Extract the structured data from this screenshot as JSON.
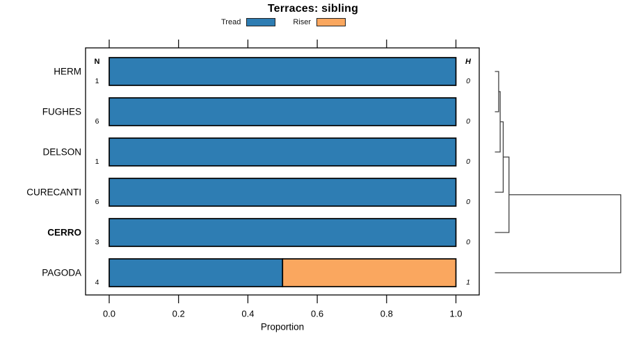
{
  "title": "Terraces: sibling",
  "legend": {
    "items": [
      {
        "label": "Tread",
        "color": "#2e7db3"
      },
      {
        "label": "Riser",
        "color": "#faa75f"
      }
    ]
  },
  "columns": {
    "n_header": "N",
    "h_header": "H"
  },
  "colors": {
    "bar_border": "#000000",
    "dendrogram_line": "#404040",
    "axis": "#000000"
  },
  "chart_data": {
    "type": "bar",
    "orientation": "horizontal",
    "stacked": true,
    "title": "Terraces: sibling",
    "xlabel": "Proportion",
    "xlim": [
      0,
      1
    ],
    "x_ticks": [
      "0.0",
      "0.2",
      "0.4",
      "0.6",
      "0.8",
      "1.0"
    ],
    "grid": false,
    "legend_position": "top",
    "categories": [
      "HERM",
      "FUGHES",
      "DELSON",
      "CURECANTI",
      "CERRO",
      "PAGODA"
    ],
    "bold_categories": [
      "CERRO"
    ],
    "series": [
      {
        "name": "Tread",
        "color": "#2e7db3",
        "values": [
          1.0,
          1.0,
          1.0,
          1.0,
          1.0,
          0.5
        ]
      },
      {
        "name": "Riser",
        "color": "#faa75f",
        "values": [
          0,
          0,
          0,
          0,
          0,
          0.5
        ]
      }
    ],
    "n_values": [
      1,
      6,
      1,
      6,
      3,
      4
    ],
    "h_values": [
      0,
      0,
      0,
      0,
      0,
      1
    ],
    "dendrogram": {
      "leaf_order": [
        "HERM",
        "FUGHES",
        "DELSON",
        "CURECANTI",
        "CERRO",
        "PAGODA"
      ],
      "merges": [
        {
          "a": "L0",
          "b": "L1",
          "height": 0.03
        },
        {
          "a": "M0",
          "b": "L2",
          "height": 0.042
        },
        {
          "a": "M1",
          "b": "L3",
          "height": 0.066
        },
        {
          "a": "M2",
          "b": "L4",
          "height": 0.112
        },
        {
          "a": "M3",
          "b": "L5",
          "height": 1.0
        }
      ],
      "max_height": 1
    }
  }
}
